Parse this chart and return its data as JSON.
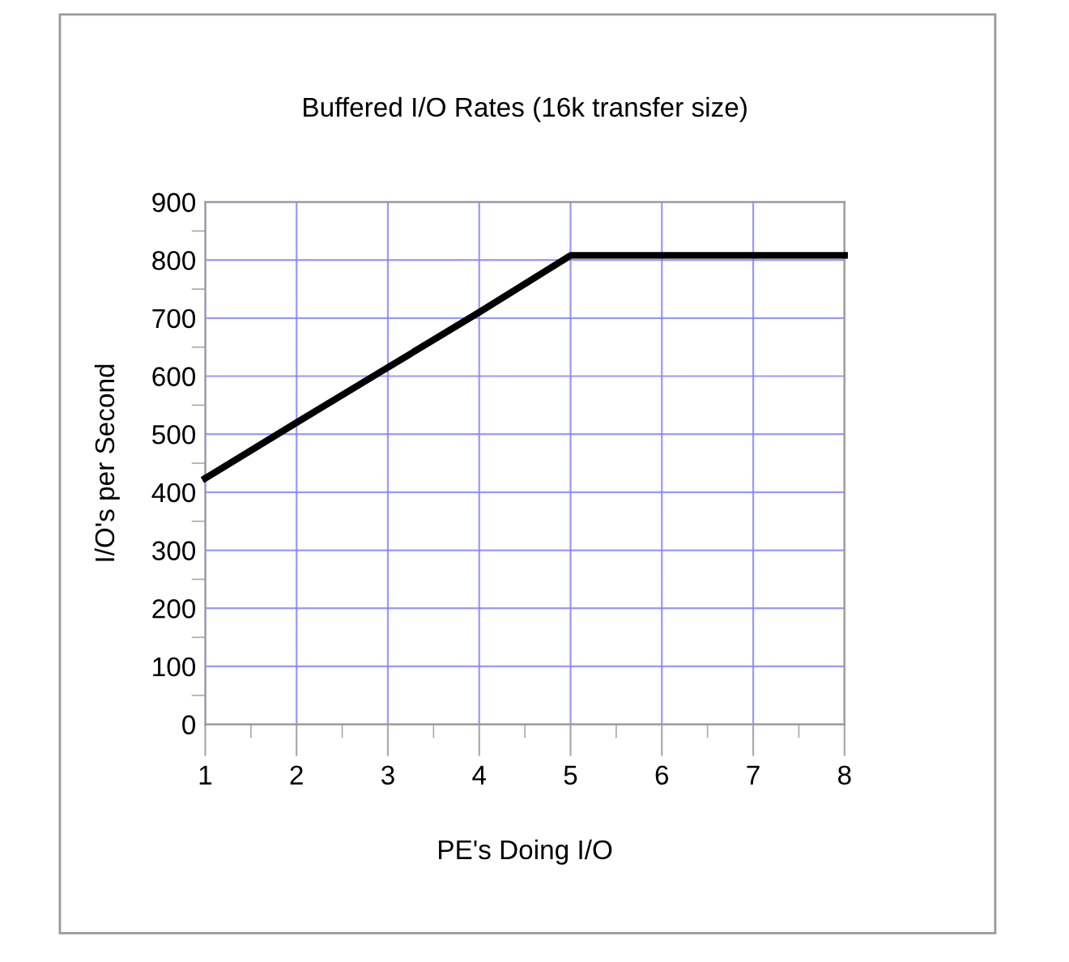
{
  "chart_data": {
    "type": "line",
    "title": "Buffered I/O Rates (16k transfer size)",
    "xlabel": "PE's Doing I/O",
    "ylabel": "I/O's per Second",
    "x": [
      1,
      2,
      3,
      4,
      5,
      6,
      7,
      8
    ],
    "series": [
      {
        "color": "#000000",
        "values": [
          424,
          520,
          615,
          710,
          808,
          808,
          808,
          808
        ]
      }
    ],
    "xlim": [
      1,
      8
    ],
    "xticks": [
      1,
      2,
      3,
      4,
      5,
      6,
      7,
      8
    ],
    "ylim": [
      0,
      900
    ],
    "yticks": [
      0,
      100,
      200,
      300,
      400,
      500,
      600,
      700,
      800,
      900
    ],
    "grid": true,
    "legend": false,
    "marker": "none",
    "line_style": "solid"
  }
}
